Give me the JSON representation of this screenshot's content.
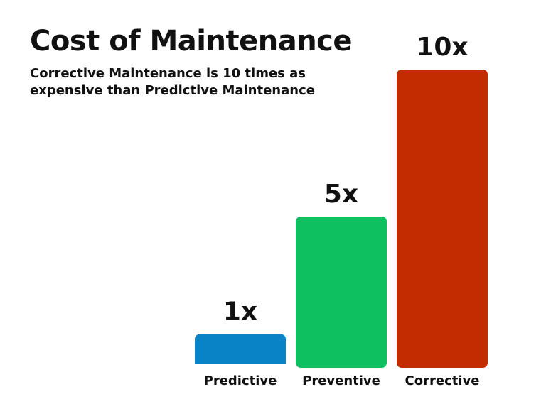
{
  "chart_data": {
    "type": "bar",
    "title": "Cost of Maintenance",
    "subtitle": "Corrective Maintenance is 10 times as expensive than Predictive Maintenance",
    "categories": [
      "Predictive",
      "Preventive",
      "Corrective"
    ],
    "values": [
      1,
      5,
      10
    ],
    "data_labels": [
      "1x",
      "5x",
      "10x"
    ],
    "colors": [
      "#0a82c6",
      "#0ec060",
      "#c22c00"
    ],
    "ylim": [
      0,
      10
    ],
    "xlabel": "",
    "ylabel": "",
    "grid": false,
    "legend": "none"
  }
}
